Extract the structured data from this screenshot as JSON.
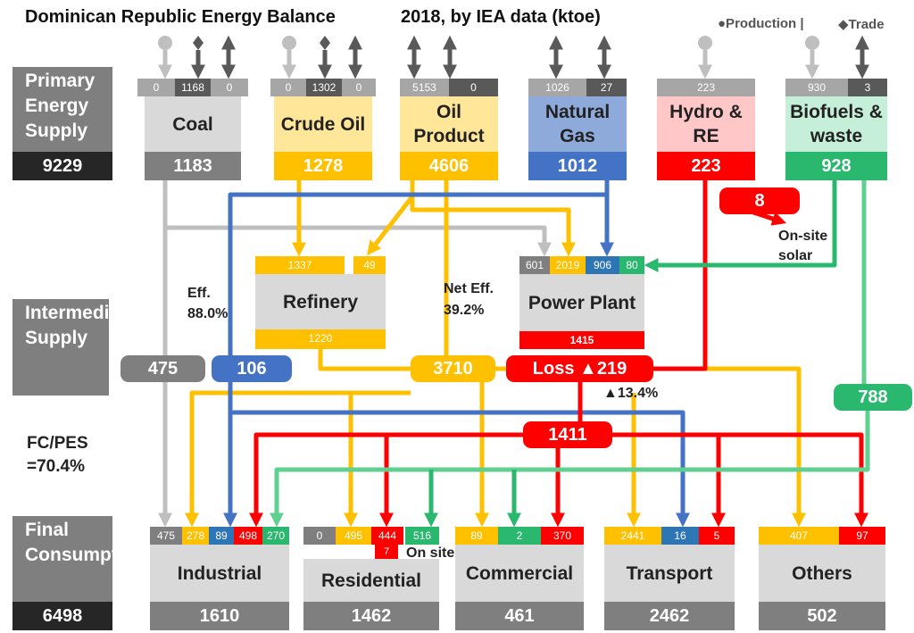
{
  "title": "Dominican Republic Energy Balance",
  "subtitle": "2018, by IEA data (ktoe)",
  "legend": {
    "production": "●Production |",
    "trade": "◆Trade"
  },
  "colors": {
    "coal": "#7f7f7f",
    "coal_light": "#d9d9d9",
    "crude": "#ffc000",
    "crude_light": "#ffe699",
    "gas": "#4472c4",
    "gas_light": "#8eaadb",
    "hydro": "#ff0000",
    "hydro_light": "#ffc7c7",
    "bio": "#2ab86e",
    "bio_light": "#c6efda",
    "dark": "#262626",
    "teal": "#2e75b6"
  },
  "primary": {
    "label": "Primary Energy Supply",
    "total": "9229",
    "sources": [
      {
        "name": "Coal",
        "total": "1183",
        "cells": [
          "0",
          "1168",
          "0"
        ]
      },
      {
        "name": "Crude Oil",
        "total": "1278",
        "cells": [
          "0",
          "1302",
          "0"
        ]
      },
      {
        "name": "Oil Product",
        "total": "4606",
        "cells": [
          "5153",
          "0"
        ]
      },
      {
        "name": "Natural Gas",
        "total": "1012",
        "cells": [
          "1026",
          "27"
        ]
      },
      {
        "name": "Hydro & RE",
        "total": "223",
        "cells": [
          "223"
        ]
      },
      {
        "name": "Biofuels & waste",
        "total": "928",
        "cells": [
          "930",
          "3"
        ]
      }
    ]
  },
  "intermediate": {
    "label": "Intermediate Supply",
    "refinery": {
      "name": "Refinery",
      "in": [
        "1337",
        "49"
      ],
      "out": "1220",
      "eff_label": "Eff.",
      "eff_value": "88.0%"
    },
    "power": {
      "name": "Power Plant",
      "in": [
        "601",
        "2019",
        "906",
        "80"
      ],
      "out": "1415",
      "eff_label": "Net Eff.",
      "eff_value": "39.2%"
    },
    "flows": {
      "coal": "475",
      "gas": "106",
      "oil": "3710",
      "loss": "Loss ▲219",
      "loss_pct": "▲13.4%",
      "elec": "1411",
      "bio": "788",
      "solar": "8",
      "solar_label": "On-site solar"
    }
  },
  "fcpes": "FC/PES =70.4%",
  "final": {
    "label": "Final Consumption",
    "total": "6498",
    "onsite_label": "On site",
    "sectors": [
      {
        "name": "Industrial",
        "total": "1610",
        "cells": [
          "475",
          "278",
          "89",
          "498",
          "270"
        ]
      },
      {
        "name": "Residential",
        "total": "1462",
        "cells": [
          "0",
          "495",
          "444",
          "516"
        ],
        "extra": "7"
      },
      {
        "name": "Commercial",
        "total": "461",
        "cells": [
          "89",
          "2",
          "370"
        ]
      },
      {
        "name": "Transport",
        "total": "2462",
        "cells": [
          "2441",
          "16",
          "5"
        ]
      },
      {
        "name": "Others",
        "total": "502",
        "cells": [
          "407",
          "97"
        ]
      }
    ]
  }
}
